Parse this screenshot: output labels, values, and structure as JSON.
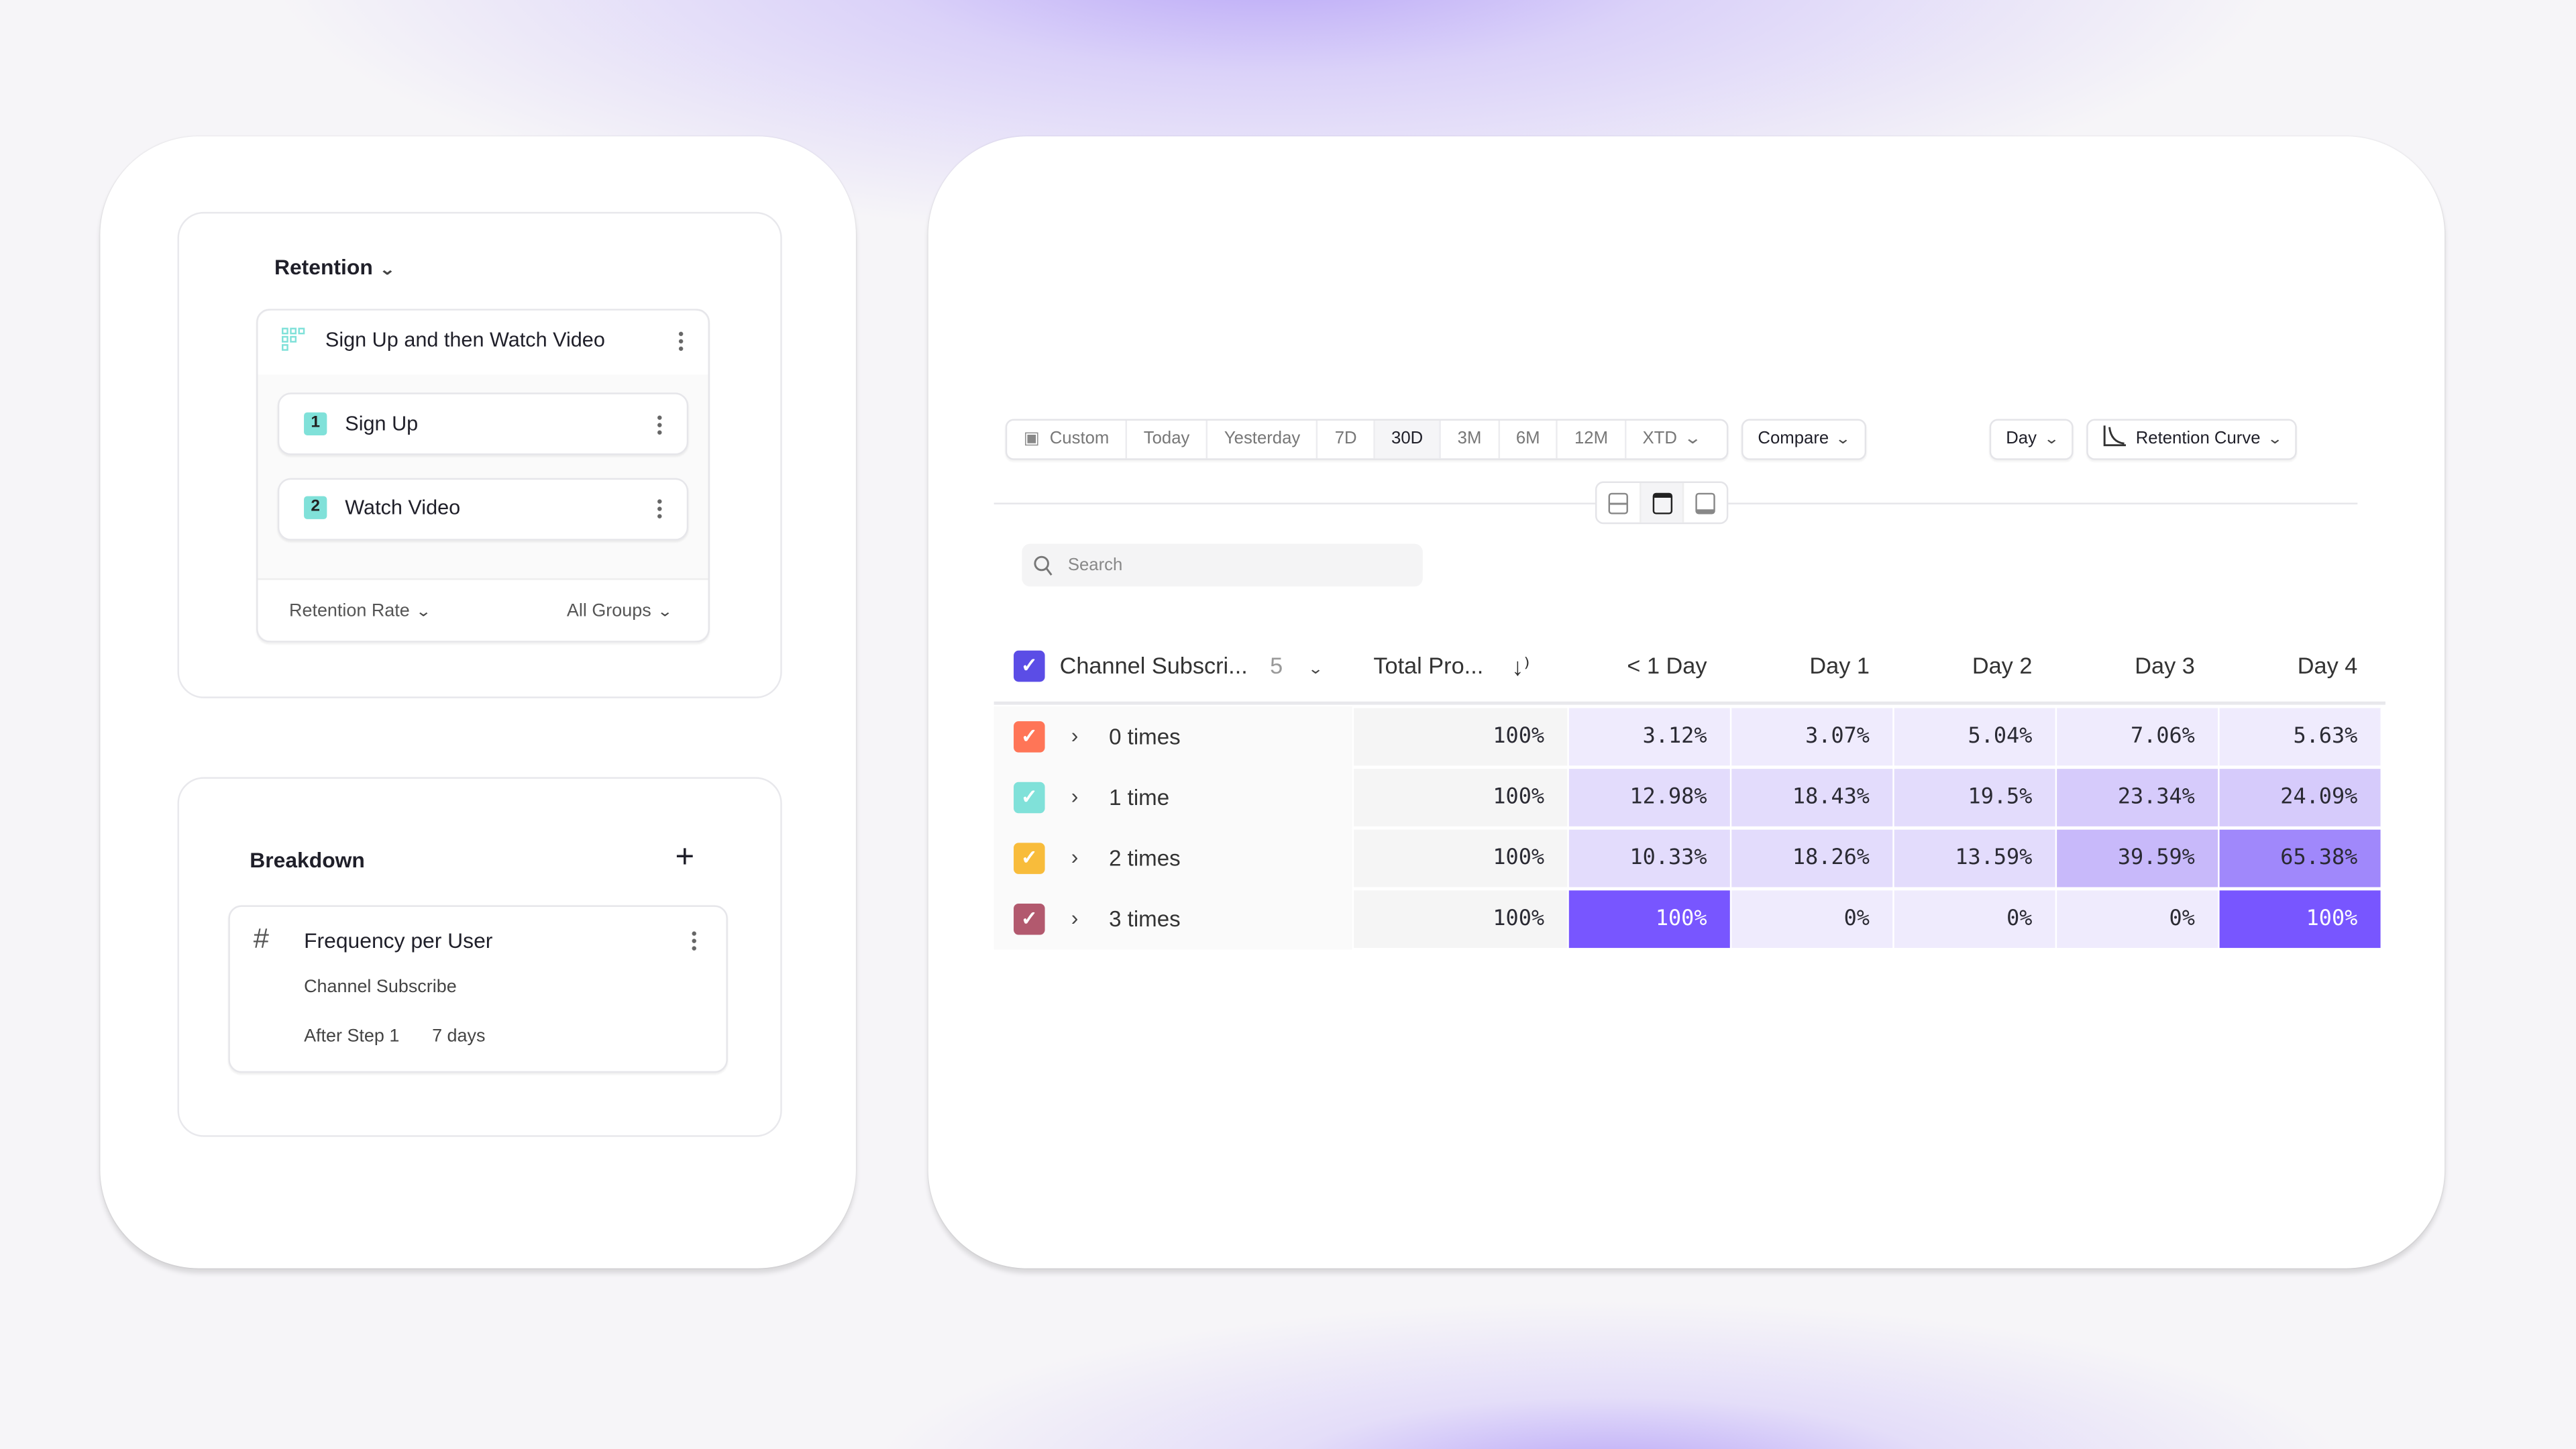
{
  "left_panel": {
    "report_type": "Retention",
    "metric": {
      "title": "Sign Up and then Watch Video",
      "steps": [
        {
          "number": "1",
          "label": "Sign Up"
        },
        {
          "number": "2",
          "label": "Watch Video"
        }
      ],
      "measure": "Retention Rate",
      "groups": "All Groups"
    },
    "breakdown": {
      "title": "Breakdown",
      "item": {
        "title": "Frequency per User",
        "event": "Channel Subscribe",
        "condition": "After Step 1",
        "window": "7 days"
      }
    }
  },
  "toolbar": {
    "date_ranges": [
      "Custom",
      "Today",
      "Yesterday",
      "7D",
      "30D",
      "3M",
      "6M",
      "12M",
      "XTD"
    ],
    "active_range": "30D",
    "compare": "Compare",
    "interval": "Day",
    "chart_type": "Retention Curve"
  },
  "search": {
    "placeholder": "Search"
  },
  "table": {
    "group_header": "Channel Subscri...",
    "group_count": "5",
    "total_header": "Total Pro...",
    "columns": [
      "< 1 Day",
      "Day 1",
      "Day 2",
      "Day 3",
      "Day 4"
    ],
    "rows": [
      {
        "label": "0 times",
        "color": "#ff7557",
        "total": "100%",
        "values": [
          "3.12%",
          "3.07%",
          "5.04%",
          "7.06%",
          "5.63%"
        ]
      },
      {
        "label": "1 time",
        "color": "#80e1d9",
        "total": "100%",
        "values": [
          "12.98%",
          "18.43%",
          "19.5%",
          "23.34%",
          "24.09%"
        ]
      },
      {
        "label": "2 times",
        "color": "#f8bc3b",
        "total": "100%",
        "values": [
          "10.33%",
          "18.26%",
          "13.59%",
          "39.59%",
          "65.38%"
        ]
      },
      {
        "label": "3 times",
        "color": "#b2596e",
        "total": "100%",
        "values": [
          "100%",
          "0%",
          "0%",
          "0%",
          "100%"
        ]
      }
    ]
  },
  "colors": {
    "accent": "#7856ff",
    "header_checkbox": "#5b4de6"
  }
}
